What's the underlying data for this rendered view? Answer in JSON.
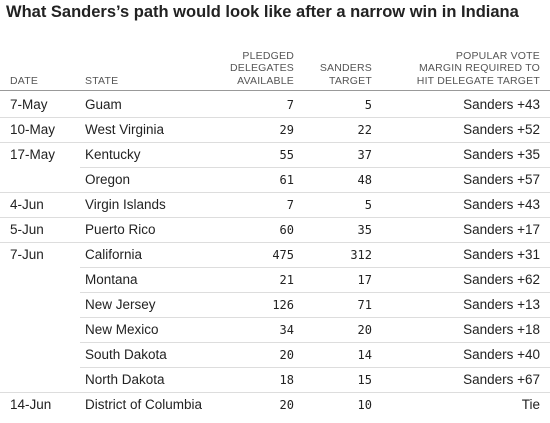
{
  "title": "What Sanders’s path would look like after a narrow win in Indiana",
  "columns": {
    "date": [
      "DATE"
    ],
    "state": [
      "STATE"
    ],
    "pledged": [
      "PLEDGED",
      "DELEGATES",
      "AVAILABLE"
    ],
    "target": [
      "SANDERS",
      "TARGET"
    ],
    "margin": [
      "POPULAR VOTE",
      "MARGIN REQUIRED TO",
      "HIT DELEGATE TARGET"
    ]
  },
  "rows": [
    {
      "date": "7-May",
      "state": "Guam",
      "pledged": "7",
      "target": "5",
      "margin": "Sanders +43",
      "group_start": true
    },
    {
      "date": "10-May",
      "state": "West Virginia",
      "pledged": "29",
      "target": "22",
      "margin": "Sanders +52",
      "group_start": true
    },
    {
      "date": "17-May",
      "state": "Kentucky",
      "pledged": "55",
      "target": "37",
      "margin": "Sanders +35",
      "group_start": true
    },
    {
      "date": "",
      "state": "Oregon",
      "pledged": "61",
      "target": "48",
      "margin": "Sanders +57",
      "group_start": false
    },
    {
      "date": "4-Jun",
      "state": "Virgin Islands",
      "pledged": "7",
      "target": "5",
      "margin": "Sanders +43",
      "group_start": true
    },
    {
      "date": "5-Jun",
      "state": "Puerto Rico",
      "pledged": "60",
      "target": "35",
      "margin": "Sanders +17",
      "group_start": true
    },
    {
      "date": "7-Jun",
      "state": "California",
      "pledged": "475",
      "target": "312",
      "margin": "Sanders +31",
      "group_start": true
    },
    {
      "date": "",
      "state": "Montana",
      "pledged": "21",
      "target": "17",
      "margin": "Sanders +62",
      "group_start": false
    },
    {
      "date": "",
      "state": "New Jersey",
      "pledged": "126",
      "target": "71",
      "margin": "Sanders +13",
      "group_start": false
    },
    {
      "date": "",
      "state": "New Mexico",
      "pledged": "34",
      "target": "20",
      "margin": "Sanders +18",
      "group_start": false
    },
    {
      "date": "",
      "state": "South Dakota",
      "pledged": "20",
      "target": "14",
      "margin": "Sanders +40",
      "group_start": false
    },
    {
      "date": "",
      "state": "North Dakota",
      "pledged": "18",
      "target": "15",
      "margin": "Sanders +67",
      "group_start": false
    },
    {
      "date": "14-Jun",
      "state": "District of Columbia",
      "pledged": "20",
      "target": "10",
      "margin": "Tie",
      "group_start": true
    }
  ]
}
